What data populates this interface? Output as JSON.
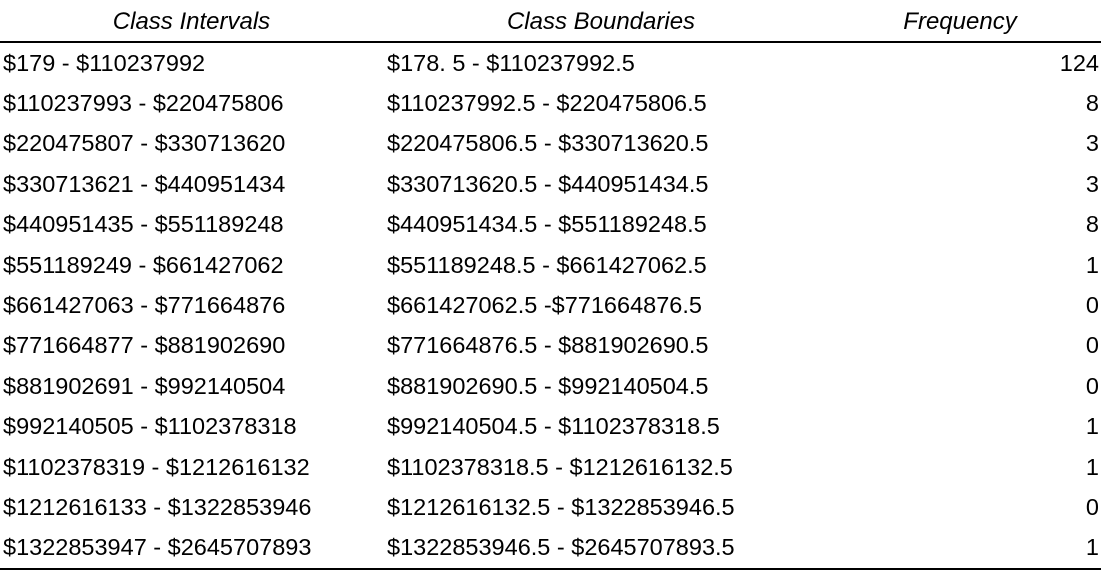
{
  "table": {
    "headers": {
      "intervals": "Class Intervals",
      "boundaries": "Class Boundaries",
      "frequency": "Frequency"
    },
    "rows": [
      {
        "interval": "$179 - $110237992",
        "boundary": "$178. 5 - $110237992.5",
        "frequency": "124"
      },
      {
        "interval": "$110237993 - $220475806",
        "boundary": "$110237992.5 - $220475806.5",
        "frequency": "8"
      },
      {
        "interval": "$220475807 - $330713620",
        "boundary": "$220475806.5 - $330713620.5",
        "frequency": "3"
      },
      {
        "interval": "$330713621 - $440951434",
        "boundary": "$330713620.5 - $440951434.5",
        "frequency": "3"
      },
      {
        "interval": "$440951435 - $551189248",
        "boundary": "$440951434.5 - $551189248.5",
        "frequency": "8"
      },
      {
        "interval": "$551189249 - $661427062",
        "boundary": "$551189248.5 - $661427062.5",
        "frequency": "1"
      },
      {
        "interval": "$661427063 - $771664876",
        "boundary": " $661427062.5 -$771664876.5",
        "frequency": "0"
      },
      {
        "interval": "$771664877 - $881902690",
        "boundary": "$771664876.5 - $881902690.5",
        "frequency": "0"
      },
      {
        "interval": "$881902691 - $992140504",
        "boundary": "$881902690.5 - $992140504.5",
        "frequency": "0"
      },
      {
        "interval": "$992140505 - $1102378318",
        "boundary": " $992140504.5 - $1102378318.5",
        "frequency": "1"
      },
      {
        "interval": "$1102378319 - $1212616132",
        "boundary": "$1102378318.5 - $1212616132.5",
        "frequency": "1"
      },
      {
        "interval": "$1212616133 - $1322853946",
        "boundary": "$1212616132.5 - $1322853946.5",
        "frequency": "0"
      },
      {
        "interval": "$1322853947 - $2645707893",
        "boundary": "$1322853946.5 - $2645707893.5",
        "frequency": "1"
      }
    ]
  }
}
